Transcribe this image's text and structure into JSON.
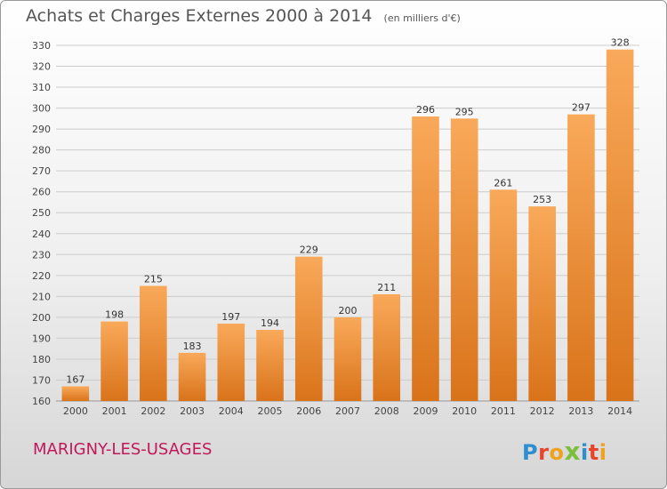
{
  "header": {
    "title": "Achats et Charges Externes 2000 à 2014",
    "subtitle": "(en milliers d'€)"
  },
  "footer": {
    "commune": "MARIGNY-LES-USAGES",
    "logo_text": "Proxiti"
  },
  "colors": {
    "bar_light": "#f9a95a",
    "bar_dark": "#d9731a",
    "grid": "#cccccc",
    "logo_letters": [
      "#2e8fd0",
      "#e8442c",
      "#f0a21c",
      "#7bbf3a",
      "#2e8fd0",
      "#e8442c",
      "#f0a21c"
    ]
  },
  "chart_data": {
    "type": "bar",
    "title": "Achats et Charges Externes 2000 à 2014",
    "subtitle": "(en milliers d'€)",
    "categories": [
      "2000",
      "2001",
      "2002",
      "2003",
      "2004",
      "2005",
      "2006",
      "2007",
      "2008",
      "2009",
      "2010",
      "2011",
      "2012",
      "2013",
      "2014"
    ],
    "values": [
      167,
      198,
      215,
      183,
      197,
      194,
      229,
      200,
      211,
      296,
      295,
      261,
      253,
      297,
      328
    ],
    "xlabel": "",
    "ylabel": "",
    "ylim": [
      160,
      330
    ],
    "yticks": [
      160,
      170,
      180,
      190,
      200,
      210,
      220,
      230,
      240,
      250,
      260,
      270,
      280,
      290,
      300,
      310,
      320,
      330
    ],
    "grid": true
  }
}
